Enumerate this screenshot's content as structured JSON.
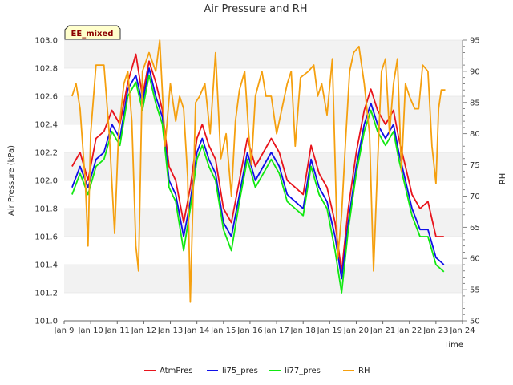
{
  "chart_data": {
    "type": "line",
    "title": "Air Pressure and RH",
    "xlabel": "Time",
    "ylabel": "Air Pressure (kPa)",
    "y2label": "RH",
    "badge": "EE_mixed",
    "xlim": [
      9,
      24
    ],
    "ylim": [
      101.0,
      103.0
    ],
    "y2lim": [
      50,
      95
    ],
    "x_ticks": [
      {
        "v": 9,
        "label": "Jan 9"
      },
      {
        "v": 10,
        "label": "Jan 10"
      },
      {
        "v": 11,
        "label": "Jan 11"
      },
      {
        "v": 12,
        "label": "Jan 12"
      },
      {
        "v": 13,
        "label": "Jan 13"
      },
      {
        "v": 14,
        "label": "Jan 14"
      },
      {
        "v": 15,
        "label": "Jan 15"
      },
      {
        "v": 16,
        "label": "Jan 16"
      },
      {
        "v": 17,
        "label": "Jan 17"
      },
      {
        "v": 18,
        "label": "Jan 18"
      },
      {
        "v": 19,
        "label": "Jan 19"
      },
      {
        "v": 20,
        "label": "Jan 20"
      },
      {
        "v": 21,
        "label": "Jan 21"
      },
      {
        "v": 22,
        "label": "Jan 22"
      },
      {
        "v": 23,
        "label": "Jan 23"
      },
      {
        "v": 24,
        "label": "Jan 24"
      }
    ],
    "y_ticks": [
      "101.0",
      "101.2",
      "101.4",
      "101.6",
      "101.8",
      "102.0",
      "102.2",
      "102.4",
      "102.6",
      "102.8",
      "103.0"
    ],
    "y2_ticks": [
      "50",
      "55",
      "60",
      "65",
      "70",
      "75",
      "80",
      "85",
      "90",
      "95"
    ],
    "grid": "horizontal bands",
    "legend_position": "bottom",
    "series": [
      {
        "name": "AtmPres",
        "axis": "left",
        "color": "#e8141c",
        "x": [
          9.3,
          9.6,
          9.9,
          10.2,
          10.5,
          10.8,
          11.1,
          11.4,
          11.7,
          11.95,
          12.2,
          12.45,
          12.7,
          12.95,
          13.2,
          13.5,
          13.75,
          14.0,
          14.2,
          14.45,
          14.7,
          15.0,
          15.3,
          15.6,
          15.9,
          16.2,
          16.5,
          16.8,
          17.1,
          17.4,
          17.7,
          18.0,
          18.3,
          18.6,
          18.9,
          19.2,
          19.45,
          19.7,
          20.0,
          20.3,
          20.55,
          20.8,
          21.1,
          21.4,
          21.6,
          21.85,
          22.1,
          22.4,
          22.7,
          23.0,
          23.3
        ],
        "y": [
          102.1,
          102.2,
          102.0,
          102.3,
          102.35,
          102.5,
          102.4,
          102.7,
          102.9,
          102.6,
          102.85,
          102.7,
          102.5,
          102.1,
          102.0,
          101.7,
          101.95,
          102.3,
          102.4,
          102.25,
          102.15,
          101.8,
          101.7,
          102.0,
          102.3,
          102.1,
          102.2,
          102.3,
          102.2,
          102.0,
          101.95,
          101.9,
          102.25,
          102.05,
          101.95,
          101.7,
          101.35,
          101.8,
          102.2,
          102.5,
          102.65,
          102.5,
          102.4,
          102.5,
          102.3,
          102.1,
          101.9,
          101.8,
          101.85,
          101.6,
          101.6
        ]
      },
      {
        "name": "li75_pres",
        "axis": "left",
        "color": "#1010e8",
        "x": [
          9.3,
          9.6,
          9.9,
          10.2,
          10.5,
          10.8,
          11.1,
          11.4,
          11.7,
          11.95,
          12.2,
          12.45,
          12.7,
          12.95,
          13.2,
          13.5,
          13.75,
          14.0,
          14.2,
          14.45,
          14.7,
          15.0,
          15.3,
          15.6,
          15.9,
          16.2,
          16.5,
          16.8,
          17.1,
          17.4,
          17.7,
          18.0,
          18.3,
          18.6,
          18.9,
          19.2,
          19.45,
          19.7,
          20.0,
          20.3,
          20.55,
          20.8,
          21.1,
          21.4,
          21.6,
          21.85,
          22.1,
          22.4,
          22.7,
          23.0,
          23.3
        ],
        "y": [
          101.95,
          102.1,
          101.95,
          102.15,
          102.2,
          102.4,
          102.3,
          102.65,
          102.75,
          102.55,
          102.8,
          102.6,
          102.45,
          102.0,
          101.9,
          101.6,
          101.85,
          102.2,
          102.3,
          102.15,
          102.05,
          101.7,
          101.6,
          101.9,
          102.2,
          102.0,
          102.1,
          102.2,
          102.1,
          101.9,
          101.85,
          101.8,
          102.15,
          101.95,
          101.85,
          101.6,
          101.3,
          101.7,
          102.1,
          102.4,
          102.55,
          102.4,
          102.3,
          102.4,
          102.2,
          102.0,
          101.8,
          101.65,
          101.65,
          101.45,
          101.4
        ]
      },
      {
        "name": "li77_pres",
        "axis": "left",
        "color": "#11e811",
        "x": [
          9.3,
          9.6,
          9.9,
          10.2,
          10.5,
          10.8,
          11.1,
          11.4,
          11.7,
          11.95,
          12.2,
          12.45,
          12.7,
          12.95,
          13.2,
          13.5,
          13.75,
          14.0,
          14.2,
          14.45,
          14.7,
          15.0,
          15.3,
          15.6,
          15.9,
          16.2,
          16.5,
          16.8,
          17.1,
          17.4,
          17.7,
          18.0,
          18.3,
          18.6,
          18.9,
          19.2,
          19.45,
          19.7,
          20.0,
          20.3,
          20.55,
          20.8,
          21.1,
          21.4,
          21.6,
          21.85,
          22.1,
          22.4,
          22.7,
          23.0,
          23.3
        ],
        "y": [
          101.9,
          102.05,
          101.9,
          102.1,
          102.15,
          102.35,
          102.25,
          102.6,
          102.7,
          102.5,
          102.75,
          102.55,
          102.4,
          101.95,
          101.85,
          101.5,
          101.8,
          102.15,
          102.25,
          102.1,
          102.0,
          101.65,
          101.5,
          101.85,
          102.15,
          101.95,
          102.05,
          102.15,
          102.05,
          101.85,
          101.8,
          101.75,
          102.1,
          101.9,
          101.8,
          101.5,
          101.2,
          101.65,
          102.05,
          102.35,
          102.5,
          102.35,
          102.25,
          102.35,
          102.15,
          101.95,
          101.75,
          101.6,
          101.6,
          101.4,
          101.35
        ]
      },
      {
        "name": "RH",
        "axis": "right",
        "color": "#f5a00f",
        "x": [
          9.3,
          9.45,
          9.6,
          9.8,
          9.9,
          10.0,
          10.2,
          10.5,
          10.7,
          10.9,
          11.05,
          11.25,
          11.4,
          11.55,
          11.7,
          11.8,
          11.95,
          12.2,
          12.45,
          12.6,
          12.8,
          13.0,
          13.2,
          13.35,
          13.5,
          13.65,
          13.75,
          13.95,
          14.1,
          14.3,
          14.5,
          14.7,
          14.9,
          15.1,
          15.3,
          15.45,
          15.6,
          15.8,
          15.95,
          16.05,
          16.2,
          16.45,
          16.6,
          16.8,
          17.0,
          17.2,
          17.4,
          17.55,
          17.7,
          17.9,
          18.2,
          18.4,
          18.55,
          18.7,
          18.9,
          19.1,
          19.3,
          19.45,
          19.6,
          19.75,
          19.9,
          20.1,
          20.3,
          20.5,
          20.65,
          20.8,
          20.95,
          21.1,
          21.25,
          21.4,
          21.55,
          21.7,
          21.85,
          22.0,
          22.2,
          22.35,
          22.5,
          22.7,
          22.85,
          23.0,
          23.1,
          23.2,
          23.35
        ],
        "y": [
          86,
          88,
          84,
          72,
          62,
          80,
          91,
          91,
          80,
          64,
          80,
          88,
          90,
          82,
          62,
          58,
          90,
          93,
          90,
          95,
          78,
          88,
          82,
          86,
          84,
          73,
          53,
          85,
          86,
          88,
          80,
          93,
          76,
          80,
          70,
          82,
          87,
          90,
          80,
          75,
          86,
          90,
          86,
          86,
          80,
          84,
          88,
          90,
          78,
          89,
          90,
          91,
          86,
          88,
          83,
          92,
          60,
          67,
          79,
          90,
          93,
          94,
          88,
          80,
          58,
          75,
          90,
          92,
          80,
          88,
          92,
          74,
          88,
          86,
          84,
          84,
          91,
          90,
          78,
          72,
          84,
          87,
          87
        ]
      }
    ]
  },
  "legend_items": [
    "AtmPres",
    "li75_pres",
    "li77_pres",
    "RH"
  ]
}
